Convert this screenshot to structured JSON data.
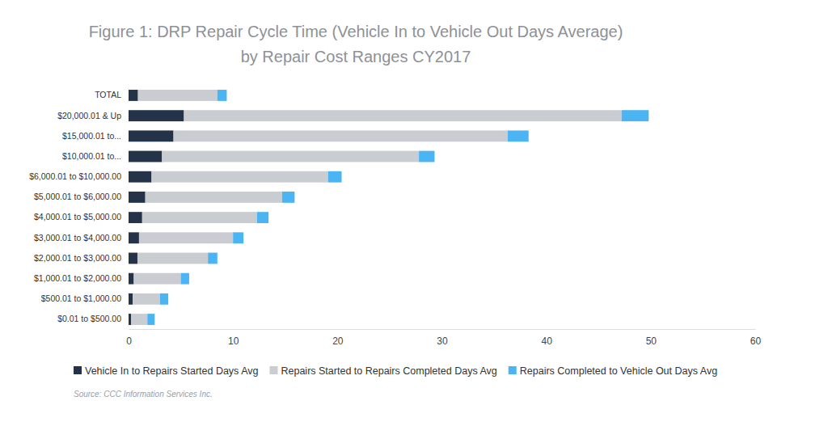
{
  "chart_data": {
    "type": "bar",
    "orientation": "horizontal",
    "stacked": true,
    "grid": false,
    "legend": "bottom",
    "title": "Figure 1: DRP Repair Cycle Time (Vehicle In to Vehicle Out Days Average)",
    "subtitle": "by Repair Cost Ranges CY2017",
    "source": "Source: CCC Information Services Inc.",
    "categories": [
      "TOTAL",
      "$20,000.01 & Up",
      "$15,000.01 to...",
      "$10,000.01 to...",
      "$6,000.01 to $10,000.00",
      "$5,000.01 to $6,000.00",
      "$4,000.01 to $5,000.00",
      "$3,000.01 to $4,000.00",
      "$2,000.01 to $3,000.00",
      "$1,000.01 to $2,000.00",
      "$500.01 to $1,000.00",
      "$0.01 to $500.00"
    ],
    "series": [
      {
        "name": "Vehicle In to Repairs Started Days Avg",
        "color": "#253349",
        "values": [
          0.9,
          5.3,
          4.3,
          3.2,
          2.2,
          1.6,
          1.3,
          1.0,
          0.85,
          0.5,
          0.4,
          0.25
        ]
      },
      {
        "name": "Repairs Started to Repairs Completed Days Avg",
        "color": "#c9ccd1",
        "values": [
          7.6,
          41.9,
          32.0,
          24.6,
          16.9,
          13.1,
          11.0,
          9.0,
          6.75,
          4.5,
          2.6,
          1.55
        ]
      },
      {
        "name": "Repairs Completed to Vehicle Out Days Avg",
        "color": "#4bb4f2",
        "values": [
          0.9,
          2.6,
          2.0,
          1.5,
          1.3,
          1.2,
          1.1,
          1.0,
          0.9,
          0.8,
          0.8,
          0.7
        ]
      }
    ],
    "xlim": [
      0,
      60
    ],
    "xticks": [
      0,
      10,
      20,
      30,
      40,
      50,
      60
    ]
  }
}
